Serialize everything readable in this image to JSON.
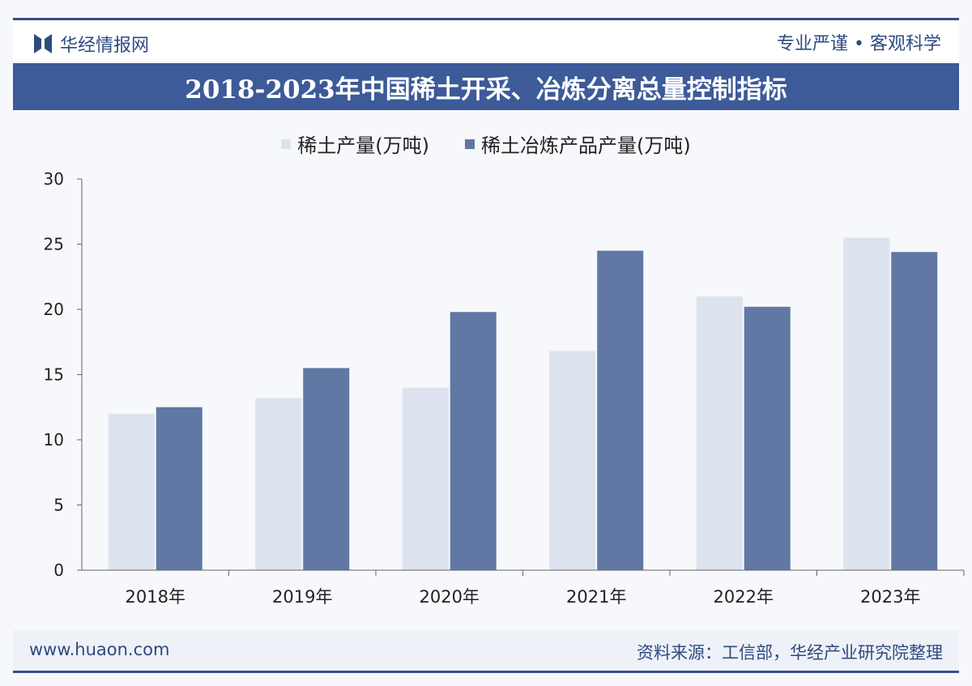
{
  "header": {
    "logo_text": "华经情报网",
    "slogan": "专业严谨 • 客观科学"
  },
  "footer": {
    "site": "www.huaon.com",
    "source": "资料来源：工信部，华经产业研究院整理"
  },
  "colors": {
    "brand": "#3d5a99",
    "series1": "#dde3ee",
    "series2": "#6078a3"
  },
  "chart_data": {
    "type": "bar",
    "title": "2018-2023年中国稀土开采、冶炼分离总量控制指标",
    "categories": [
      "2018年",
      "2019年",
      "2020年",
      "2021年",
      "2022年",
      "2023年"
    ],
    "series": [
      {
        "name": "稀土产量(万吨)",
        "values": [
          12,
          13.2,
          14,
          16.8,
          21,
          25.5
        ]
      },
      {
        "name": "稀土冶炼产品产量(万吨)",
        "values": [
          12.5,
          15.5,
          19.8,
          24.5,
          20.2,
          24.4
        ]
      }
    ],
    "ylim": [
      0,
      30
    ],
    "yticks": [
      0,
      5,
      10,
      15,
      20,
      25,
      30
    ],
    "grid": false,
    "legend": "top-center"
  }
}
